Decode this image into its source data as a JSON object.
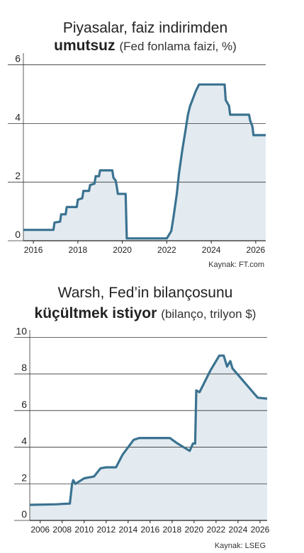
{
  "chart_data": [
    {
      "type": "line",
      "title": [
        "Piyasalar, faiz indirimden",
        "umutsuz"
      ],
      "subtitle": "(Fed fonlama faizi, %)",
      "source": "Kaynak: FT.com",
      "color": "#3b7391",
      "fill": "#e3ebf1",
      "x": [
        2015.55,
        2016.9,
        2016.95,
        2017.2,
        2017.25,
        2017.45,
        2017.5,
        2017.95,
        2018.0,
        2018.2,
        2018.25,
        2018.5,
        2018.55,
        2018.75,
        2018.8,
        2018.95,
        2019.0,
        2019.55,
        2019.6,
        2019.7,
        2019.75,
        2019.8,
        2020.15,
        2020.2,
        2022.0,
        2022.2,
        2022.3,
        2022.45,
        2022.55,
        2022.7,
        2022.85,
        2022.95,
        2023.05,
        2023.15,
        2023.3,
        2023.45,
        2024.6,
        2024.65,
        2024.8,
        2024.85,
        2025.7,
        2025.75,
        2025.85,
        2025.9,
        2026.45
      ],
      "values": [
        0.37,
        0.37,
        0.62,
        0.65,
        0.9,
        0.9,
        1.15,
        1.15,
        1.4,
        1.45,
        1.7,
        1.7,
        1.9,
        1.95,
        2.2,
        2.2,
        2.4,
        2.4,
        2.15,
        2.05,
        1.85,
        1.6,
        1.6,
        0.08,
        0.08,
        0.33,
        0.8,
        1.6,
        2.3,
        3.1,
        3.8,
        4.3,
        4.6,
        4.8,
        5.1,
        5.33,
        5.33,
        4.8,
        4.6,
        4.3,
        4.3,
        4.1,
        3.9,
        3.6,
        3.6
      ],
      "xlim": [
        2015.55,
        2026.45
      ],
      "xticks": [
        2016,
        2018,
        2020,
        2022,
        2024,
        2026
      ],
      "ylim": [
        0,
        6.4
      ],
      "yticks": [
        0,
        2,
        4,
        6
      ],
      "grid": true
    },
    {
      "type": "line",
      "title": [
        "Warsh, Fed’in bilançosunu",
        "küçültmek istiyor"
      ],
      "subtitle": "(bilanço, trilyon $)",
      "source": "Kaynak: LSEG",
      "color": "#3b7391",
      "fill": "#e3ebf1",
      "x": [
        2005.05,
        2007.5,
        2008.0,
        2008.7,
        2008.9,
        2009.0,
        2009.2,
        2010.0,
        2010.9,
        2011.5,
        2012.0,
        2012.9,
        2013.5,
        2014.5,
        2015.0,
        2017.8,
        2018.5,
        2019.6,
        2019.9,
        2020.1,
        2020.2,
        2020.5,
        2021.5,
        2022.3,
        2022.7,
        2023.0,
        2023.3,
        2023.5,
        2024.5,
        2025.5,
        2025.8,
        2026.65
      ],
      "values": [
        0.85,
        0.88,
        0.9,
        0.92,
        2.0,
        2.2,
        2.0,
        2.3,
        2.4,
        2.85,
        2.9,
        2.9,
        3.6,
        4.4,
        4.5,
        4.5,
        4.2,
        3.8,
        4.2,
        4.2,
        7.1,
        7.0,
        8.2,
        9.0,
        9.0,
        8.4,
        8.7,
        8.3,
        7.6,
        6.9,
        6.7,
        6.65
      ],
      "xlim": [
        2005.05,
        2026.65
      ],
      "xticks": [
        2006,
        2008,
        2010,
        2012,
        2014,
        2016,
        2018,
        2020,
        2022,
        2024,
        2026
      ],
      "ylim": [
        0,
        10.4
      ],
      "yticks": [
        0,
        2,
        4,
        6,
        8,
        10
      ],
      "grid": true
    }
  ]
}
